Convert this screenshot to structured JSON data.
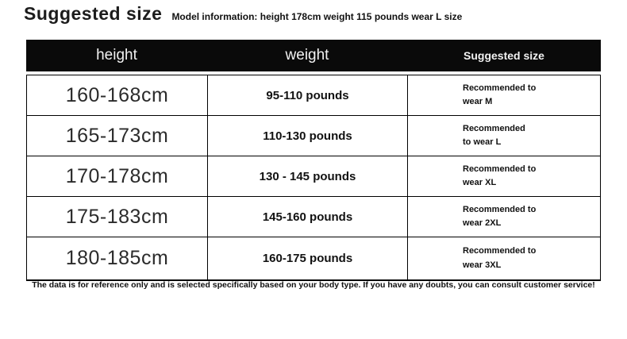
{
  "page": {
    "title": "Suggested size",
    "model_info": "Model information: height 178cm weight 115 pounds wear L size",
    "footer_note": "The data is for reference only and is selected specifically based on your body type. If you have any doubts, you can consult customer service!"
  },
  "table": {
    "headers": [
      "height",
      "weight",
      "Suggested size"
    ],
    "rows": [
      {
        "height": "160-168cm",
        "weight": "95-110 pounds",
        "suggestion_line1": "Recommended to",
        "suggestion_line2": "wear M"
      },
      {
        "height": "165-173cm",
        "weight": "110-130 pounds",
        "suggestion_line1": "Recommended",
        "suggestion_line2": "to wear L"
      },
      {
        "height": "170-178cm",
        "weight": "130 - 145 pounds",
        "suggestion_line1": "Recommended to",
        "suggestion_line2": "wear XL"
      },
      {
        "height": "175-183cm",
        "weight": "145-160 pounds",
        "suggestion_line1": "Recommended to",
        "suggestion_line2": "wear 2XL"
      },
      {
        "height": "180-185cm",
        "weight": "160-175 pounds",
        "suggestion_line1": "Recommended to",
        "suggestion_line2": "wear 3XL"
      }
    ]
  },
  "colors": {
    "header_bg": "#0a0a0a",
    "header_text": "#f2f2f2",
    "body_text": "#111111",
    "border": "#000000",
    "background": "#ffffff"
  }
}
